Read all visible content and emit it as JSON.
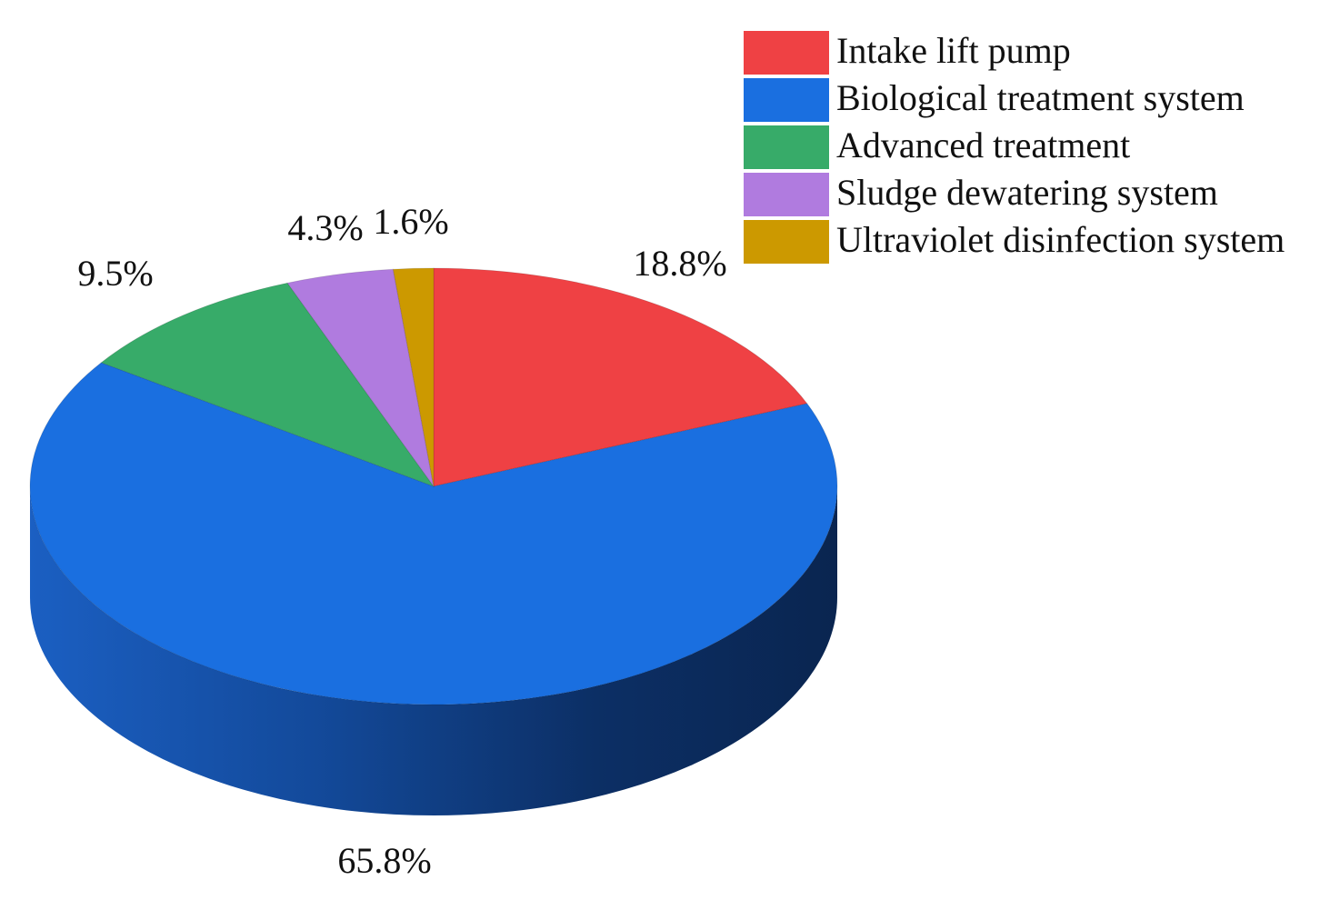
{
  "chart_data": {
    "type": "pie",
    "style": "3d",
    "title": "",
    "legend_position": "top-right",
    "categories": [
      "Intake lift pump",
      "Biological treatment system",
      "Advanced treatment",
      "Sludge dewatering system",
      "Ultraviolet disinfection system"
    ],
    "values": [
      18.8,
      65.8,
      9.5,
      4.3,
      1.6
    ],
    "labels": [
      "18.8%",
      "65.8%",
      "9.5%",
      "4.3%",
      "1.6%"
    ],
    "colors": [
      "#ef4144",
      "#1a6fe0",
      "#37ab69",
      "#b07bdf",
      "#cc9900"
    ]
  }
}
